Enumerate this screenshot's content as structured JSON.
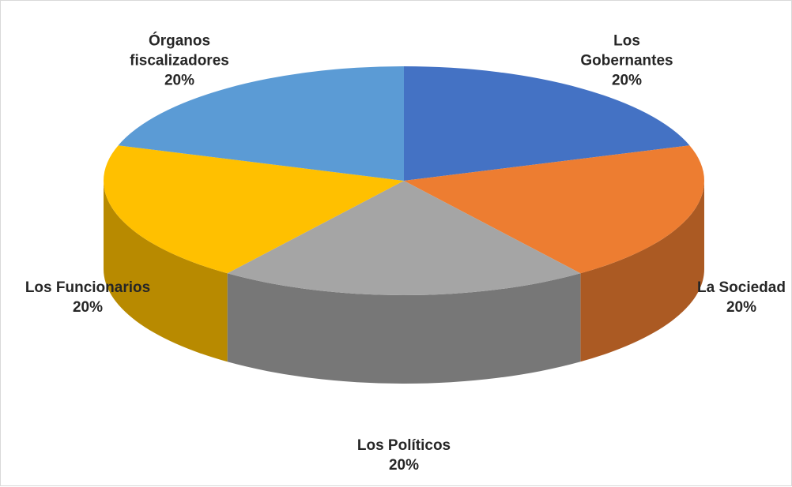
{
  "chart_data": {
    "type": "pie",
    "categories": [
      "Los Gobernantes",
      "La Sociedad",
      "Los Políticos",
      "Los Funcionarios",
      "Órganos fiscalizadores"
    ],
    "values": [
      20,
      20,
      20,
      20,
      20
    ],
    "value_labels": [
      "20%",
      "20%",
      "20%",
      "20%",
      "20%"
    ],
    "colors": [
      "#4472c4",
      "#ed7d31",
      "#a5a5a5",
      "#ffc000",
      "#5b9bd5"
    ]
  }
}
